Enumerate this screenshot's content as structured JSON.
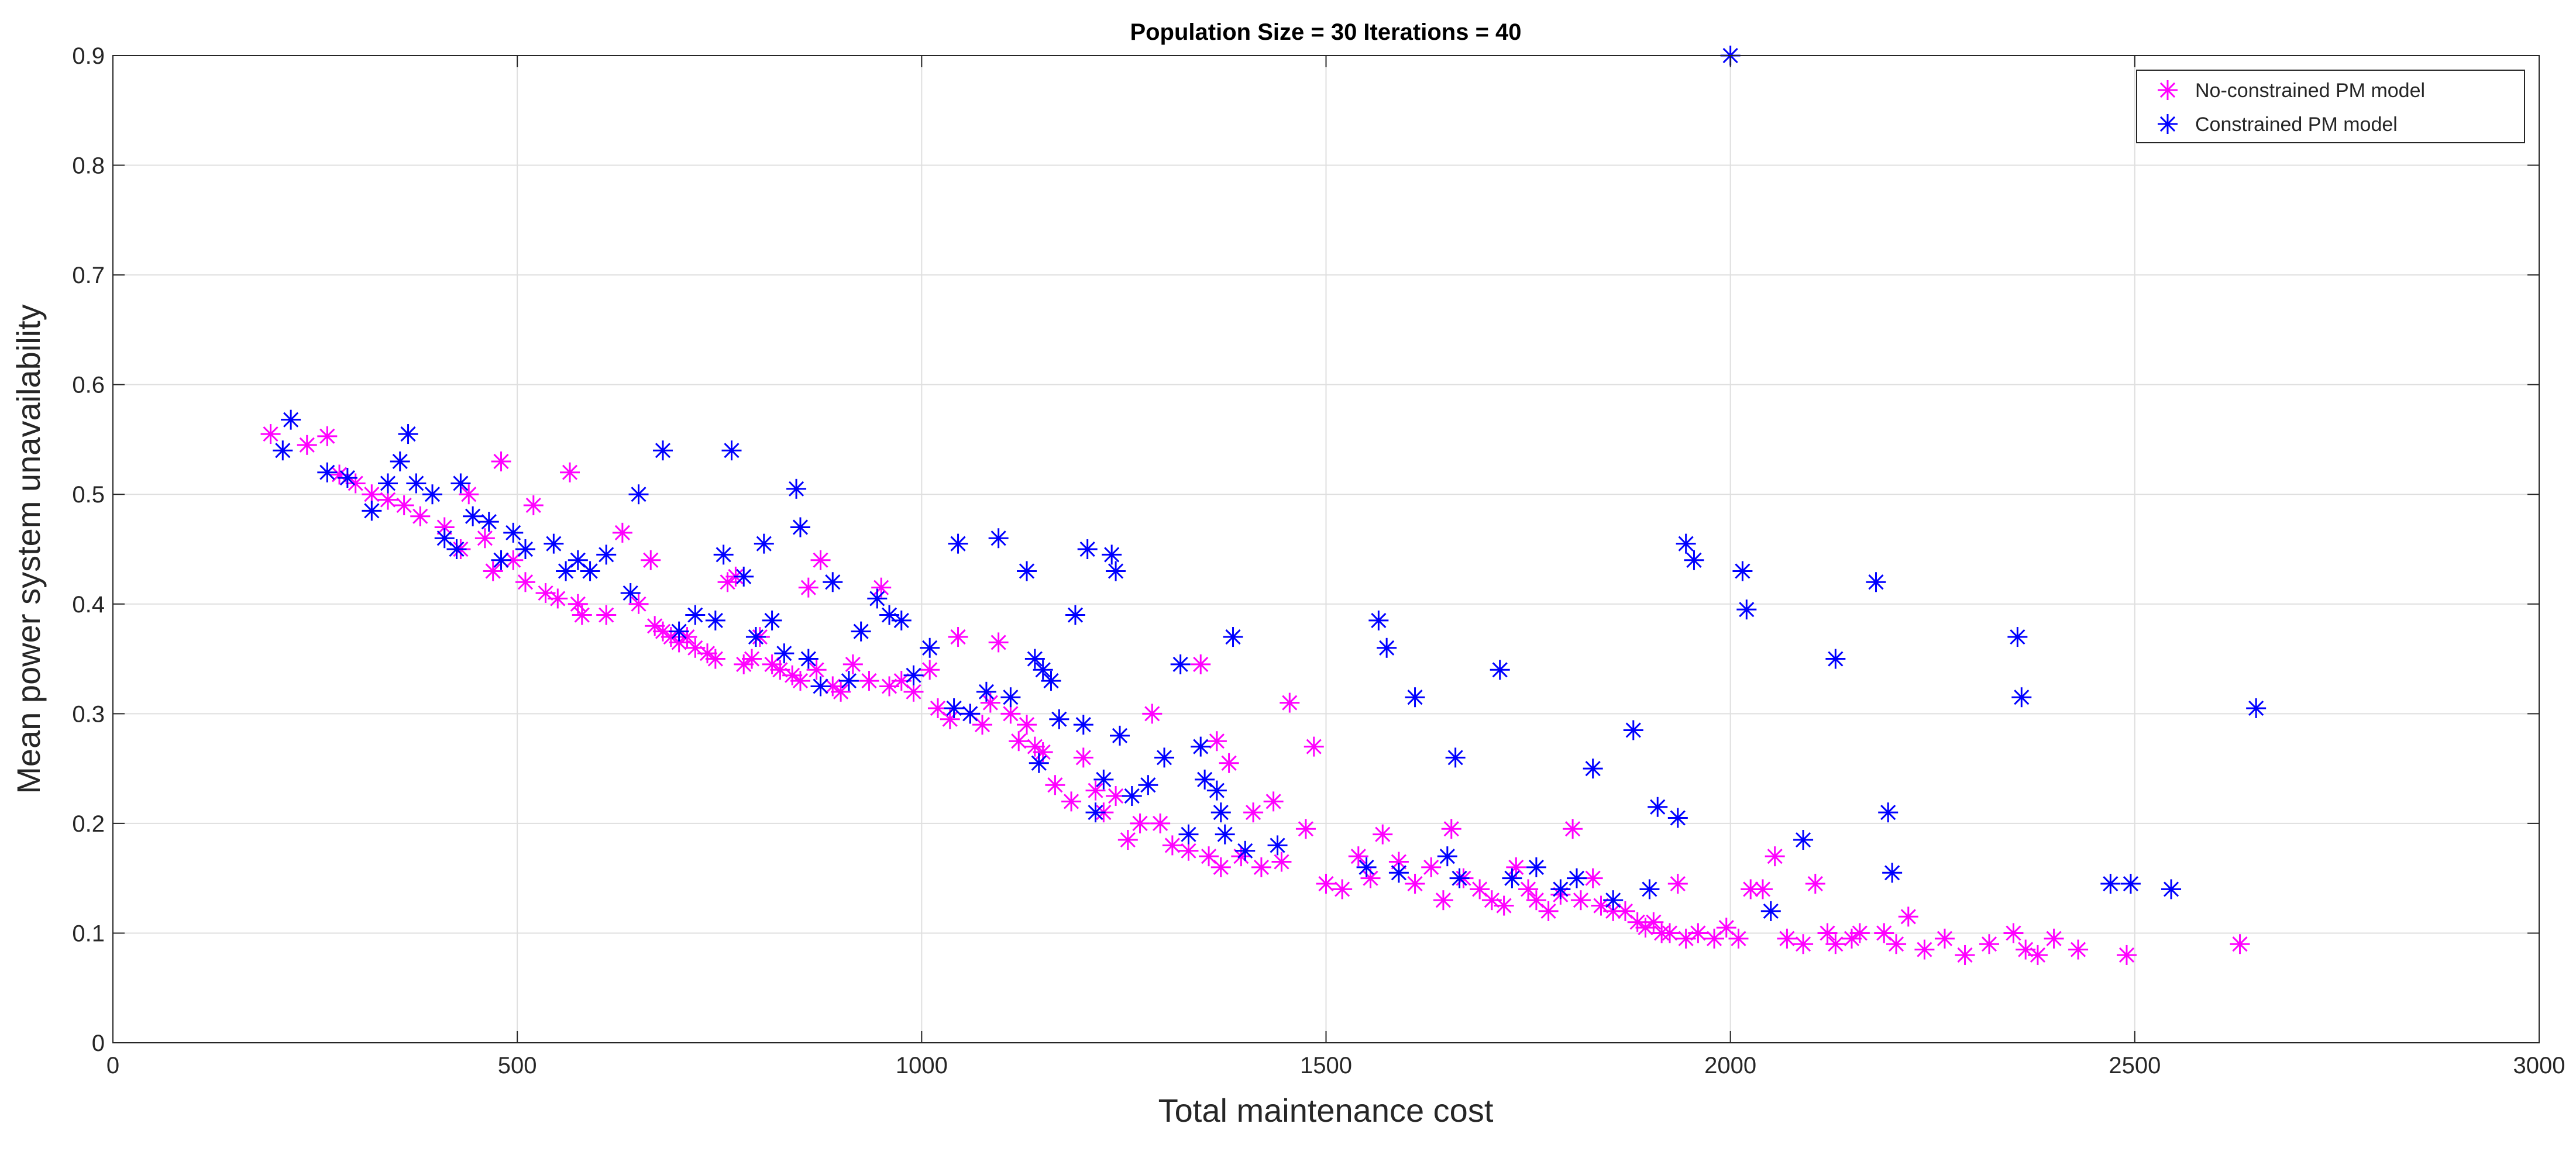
{
  "chart_data": {
    "type": "scatter",
    "title": "Population Size = 30  Iterations = 40",
    "xlabel": "Total maintenance cost",
    "ylabel": "Mean power system unavailability",
    "xlim": [
      0,
      3000
    ],
    "ylim": [
      0,
      0.9
    ],
    "xticks": [
      0,
      500,
      1000,
      1500,
      2000,
      2500,
      3000
    ],
    "yticks": [
      0,
      0.1,
      0.2,
      0.3,
      0.4,
      0.5,
      0.6,
      0.7,
      0.8,
      0.9
    ],
    "grid": true,
    "legend_position": "top-right",
    "series": [
      {
        "name": "No-constrained PM model",
        "color": "#ff00ff",
        "marker": "asterisk",
        "points": [
          [
            195,
            0.555
          ],
          [
            240,
            0.545
          ],
          [
            265,
            0.553
          ],
          [
            280,
            0.518
          ],
          [
            300,
            0.51
          ],
          [
            320,
            0.5
          ],
          [
            340,
            0.495
          ],
          [
            360,
            0.49
          ],
          [
            380,
            0.48
          ],
          [
            410,
            0.47
          ],
          [
            430,
            0.45
          ],
          [
            440,
            0.5
          ],
          [
            460,
            0.46
          ],
          [
            470,
            0.43
          ],
          [
            480,
            0.53
          ],
          [
            495,
            0.44
          ],
          [
            510,
            0.42
          ],
          [
            520,
            0.49
          ],
          [
            535,
            0.41
          ],
          [
            550,
            0.405
          ],
          [
            565,
            0.52
          ],
          [
            575,
            0.4
          ],
          [
            580,
            0.39
          ],
          [
            610,
            0.39
          ],
          [
            630,
            0.465
          ],
          [
            650,
            0.4
          ],
          [
            665,
            0.44
          ],
          [
            670,
            0.38
          ],
          [
            680,
            0.375
          ],
          [
            690,
            0.37
          ],
          [
            700,
            0.365
          ],
          [
            710,
            0.37
          ],
          [
            720,
            0.36
          ],
          [
            735,
            0.355
          ],
          [
            745,
            0.35
          ],
          [
            760,
            0.42
          ],
          [
            770,
            0.425
          ],
          [
            780,
            0.345
          ],
          [
            790,
            0.35
          ],
          [
            800,
            0.37
          ],
          [
            815,
            0.345
          ],
          [
            825,
            0.34
          ],
          [
            840,
            0.335
          ],
          [
            850,
            0.33
          ],
          [
            860,
            0.415
          ],
          [
            870,
            0.34
          ],
          [
            875,
            0.44
          ],
          [
            890,
            0.325
          ],
          [
            900,
            0.32
          ],
          [
            915,
            0.345
          ],
          [
            935,
            0.33
          ],
          [
            950,
            0.415
          ],
          [
            960,
            0.325
          ],
          [
            975,
            0.33
          ],
          [
            990,
            0.32
          ],
          [
            1010,
            0.34
          ],
          [
            1020,
            0.305
          ],
          [
            1035,
            0.295
          ],
          [
            1045,
            0.37
          ],
          [
            1060,
            0.3
          ],
          [
            1075,
            0.29
          ],
          [
            1085,
            0.31
          ],
          [
            1095,
            0.365
          ],
          [
            1110,
            0.3
          ],
          [
            1120,
            0.275
          ],
          [
            1130,
            0.29
          ],
          [
            1140,
            0.27
          ],
          [
            1150,
            0.265
          ],
          [
            1165,
            0.235
          ],
          [
            1185,
            0.22
          ],
          [
            1200,
            0.26
          ],
          [
            1215,
            0.23
          ],
          [
            1225,
            0.21
          ],
          [
            1240,
            0.225
          ],
          [
            1255,
            0.185
          ],
          [
            1270,
            0.2
          ],
          [
            1285,
            0.3
          ],
          [
            1295,
            0.2
          ],
          [
            1310,
            0.18
          ],
          [
            1330,
            0.175
          ],
          [
            1345,
            0.345
          ],
          [
            1355,
            0.17
          ],
          [
            1365,
            0.275
          ],
          [
            1370,
            0.16
          ],
          [
            1380,
            0.255
          ],
          [
            1395,
            0.17
          ],
          [
            1410,
            0.21
          ],
          [
            1420,
            0.16
          ],
          [
            1435,
            0.22
          ],
          [
            1445,
            0.165
          ],
          [
            1455,
            0.31
          ],
          [
            1475,
            0.195
          ],
          [
            1485,
            0.27
          ],
          [
            1500,
            0.145
          ],
          [
            1520,
            0.14
          ],
          [
            1540,
            0.17
          ],
          [
            1555,
            0.15
          ],
          [
            1570,
            0.19
          ],
          [
            1590,
            0.165
          ],
          [
            1610,
            0.145
          ],
          [
            1630,
            0.16
          ],
          [
            1645,
            0.13
          ],
          [
            1655,
            0.195
          ],
          [
            1670,
            0.15
          ],
          [
            1690,
            0.14
          ],
          [
            1705,
            0.13
          ],
          [
            1720,
            0.125
          ],
          [
            1735,
            0.16
          ],
          [
            1750,
            0.14
          ],
          [
            1760,
            0.13
          ],
          [
            1775,
            0.12
          ],
          [
            1790,
            0.135
          ],
          [
            1805,
            0.195
          ],
          [
            1815,
            0.13
          ],
          [
            1830,
            0.15
          ],
          [
            1840,
            0.125
          ],
          [
            1855,
            0.12
          ],
          [
            1870,
            0.12
          ],
          [
            1885,
            0.11
          ],
          [
            1895,
            0.105
          ],
          [
            1905,
            0.11
          ],
          [
            1915,
            0.1
          ],
          [
            1925,
            0.1
          ],
          [
            1935,
            0.145
          ],
          [
            1945,
            0.095
          ],
          [
            1960,
            0.1
          ],
          [
            1980,
            0.095
          ],
          [
            1995,
            0.105
          ],
          [
            2010,
            0.095
          ],
          [
            2025,
            0.14
          ],
          [
            2040,
            0.14
          ],
          [
            2055,
            0.17
          ],
          [
            2070,
            0.095
          ],
          [
            2090,
            0.09
          ],
          [
            2105,
            0.145
          ],
          [
            2120,
            0.1
          ],
          [
            2130,
            0.09
          ],
          [
            2150,
            0.095
          ],
          [
            2160,
            0.1
          ],
          [
            2190,
            0.1
          ],
          [
            2205,
            0.09
          ],
          [
            2220,
            0.115
          ],
          [
            2240,
            0.085
          ],
          [
            2265,
            0.095
          ],
          [
            2290,
            0.08
          ],
          [
            2320,
            0.09
          ],
          [
            2350,
            0.1
          ],
          [
            2365,
            0.085
          ],
          [
            2380,
            0.08
          ],
          [
            2400,
            0.095
          ],
          [
            2430,
            0.085
          ],
          [
            2490,
            0.08
          ],
          [
            2630,
            0.09
          ]
        ]
      },
      {
        "name": "Constrained PM model",
        "color": "#0000ff",
        "marker": "asterisk",
        "points": [
          [
            210,
            0.54
          ],
          [
            220,
            0.568
          ],
          [
            265,
            0.52
          ],
          [
            290,
            0.515
          ],
          [
            320,
            0.485
          ],
          [
            340,
            0.51
          ],
          [
            355,
            0.53
          ],
          [
            365,
            0.555
          ],
          [
            375,
            0.51
          ],
          [
            395,
            0.5
          ],
          [
            410,
            0.46
          ],
          [
            425,
            0.45
          ],
          [
            430,
            0.51
          ],
          [
            445,
            0.48
          ],
          [
            465,
            0.475
          ],
          [
            480,
            0.44
          ],
          [
            495,
            0.465
          ],
          [
            510,
            0.45
          ],
          [
            545,
            0.455
          ],
          [
            560,
            0.43
          ],
          [
            575,
            0.44
          ],
          [
            590,
            0.43
          ],
          [
            610,
            0.445
          ],
          [
            640,
            0.41
          ],
          [
            650,
            0.5
          ],
          [
            680,
            0.54
          ],
          [
            700,
            0.375
          ],
          [
            720,
            0.39
          ],
          [
            745,
            0.385
          ],
          [
            755,
            0.445
          ],
          [
            765,
            0.54
          ],
          [
            780,
            0.425
          ],
          [
            795,
            0.37
          ],
          [
            805,
            0.455
          ],
          [
            815,
            0.385
          ],
          [
            830,
            0.355
          ],
          [
            845,
            0.505
          ],
          [
            850,
            0.47
          ],
          [
            860,
            0.35
          ],
          [
            875,
            0.325
          ],
          [
            890,
            0.42
          ],
          [
            910,
            0.33
          ],
          [
            925,
            0.375
          ],
          [
            945,
            0.405
          ],
          [
            960,
            0.39
          ],
          [
            975,
            0.385
          ],
          [
            990,
            0.335
          ],
          [
            1010,
            0.36
          ],
          [
            1040,
            0.305
          ],
          [
            1045,
            0.455
          ],
          [
            1060,
            0.3
          ],
          [
            1080,
            0.32
          ],
          [
            1095,
            0.46
          ],
          [
            1110,
            0.315
          ],
          [
            1130,
            0.43
          ],
          [
            1140,
            0.35
          ],
          [
            1145,
            0.255
          ],
          [
            1150,
            0.34
          ],
          [
            1160,
            0.33
          ],
          [
            1170,
            0.295
          ],
          [
            1190,
            0.39
          ],
          [
            1200,
            0.29
          ],
          [
            1205,
            0.45
          ],
          [
            1215,
            0.21
          ],
          [
            1225,
            0.24
          ],
          [
            1235,
            0.445
          ],
          [
            1240,
            0.43
          ],
          [
            1245,
            0.28
          ],
          [
            1260,
            0.225
          ],
          [
            1280,
            0.235
          ],
          [
            1300,
            0.26
          ],
          [
            1320,
            0.345
          ],
          [
            1330,
            0.19
          ],
          [
            1345,
            0.27
          ],
          [
            1350,
            0.24
          ],
          [
            1365,
            0.23
          ],
          [
            1370,
            0.21
          ],
          [
            1375,
            0.19
          ],
          [
            1385,
            0.37
          ],
          [
            1400,
            0.175
          ],
          [
            1440,
            0.18
          ],
          [
            1550,
            0.16
          ],
          [
            1565,
            0.385
          ],
          [
            1575,
            0.36
          ],
          [
            1590,
            0.155
          ],
          [
            1610,
            0.315
          ],
          [
            1650,
            0.17
          ],
          [
            1660,
            0.26
          ],
          [
            1665,
            0.15
          ],
          [
            1715,
            0.34
          ],
          [
            1730,
            0.15
          ],
          [
            1760,
            0.16
          ],
          [
            1790,
            0.14
          ],
          [
            1810,
            0.15
          ],
          [
            1830,
            0.25
          ],
          [
            1855,
            0.13
          ],
          [
            1880,
            0.285
          ],
          [
            1900,
            0.14
          ],
          [
            1910,
            0.215
          ],
          [
            1935,
            0.205
          ],
          [
            1945,
            0.455
          ],
          [
            1955,
            0.44
          ],
          [
            2000,
            0.9
          ],
          [
            2015,
            0.43
          ],
          [
            2020,
            0.395
          ],
          [
            2050,
            0.12
          ],
          [
            2090,
            0.185
          ],
          [
            2130,
            0.35
          ],
          [
            2180,
            0.42
          ],
          [
            2195,
            0.21
          ],
          [
            2200,
            0.155
          ],
          [
            2355,
            0.37
          ],
          [
            2360,
            0.315
          ],
          [
            2470,
            0.145
          ],
          [
            2495,
            0.145
          ],
          [
            2545,
            0.14
          ],
          [
            2650,
            0.305
          ]
        ]
      }
    ]
  }
}
